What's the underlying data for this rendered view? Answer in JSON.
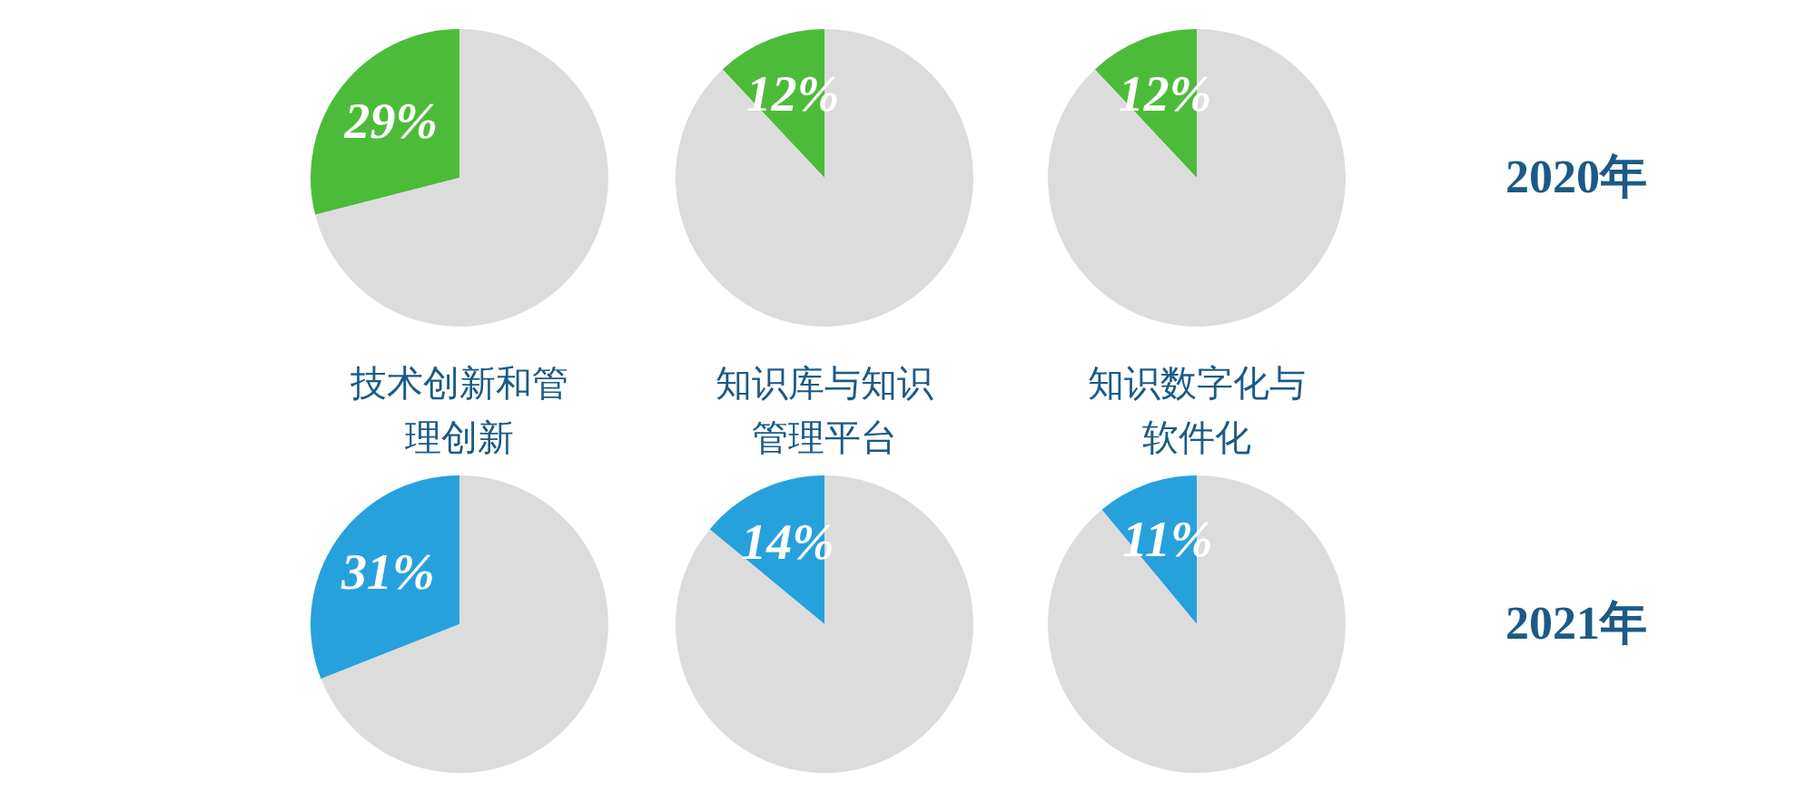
{
  "chart_data": [
    {
      "type": "pie",
      "categories": [
        null,
        null
      ],
      "values": [
        29,
        71
      ],
      "colors": [
        "#4dbb3a",
        "#dcdcdc"
      ],
      "value_labels": [
        "29%",
        null
      ],
      "xlabel": "技术创新和管理创新"
    },
    {
      "type": "pie",
      "categories": [
        null,
        null
      ],
      "values": [
        12,
        88
      ],
      "colors": [
        "#4dbb3a",
        "#dcdcdc"
      ],
      "value_labels": [
        "12%",
        null
      ],
      "xlabel": "知识库与知识管理平台"
    },
    {
      "type": "pie",
      "categories": [
        null,
        null
      ],
      "values": [
        12,
        88
      ],
      "colors": [
        "#4dbb3a",
        "#dcdcdc"
      ],
      "value_labels": [
        "12%",
        null
      ],
      "xlabel": "知识数字化与软件化",
      "annotations": [
        "2020年"
      ]
    },
    {
      "type": "pie",
      "categories": [
        null,
        null
      ],
      "values": [
        31,
        69
      ],
      "colors": [
        "#27a1dc",
        "#dcdcdc"
      ],
      "value_labels": [
        "31%",
        null
      ]
    },
    {
      "type": "pie",
      "categories": [
        null,
        null
      ],
      "values": [
        14,
        86
      ],
      "colors": [
        "#27a1dc",
        "#dcdcdc"
      ],
      "value_labels": [
        "14%",
        null
      ]
    },
    {
      "type": "pie",
      "categories": [
        null,
        null
      ],
      "values": [
        11,
        89
      ],
      "colors": [
        "#27a1dc",
        "#dcdcdc"
      ],
      "value_labels": [
        "11%",
        null
      ],
      "annotations": [
        "2021年"
      ]
    }
  ]
}
